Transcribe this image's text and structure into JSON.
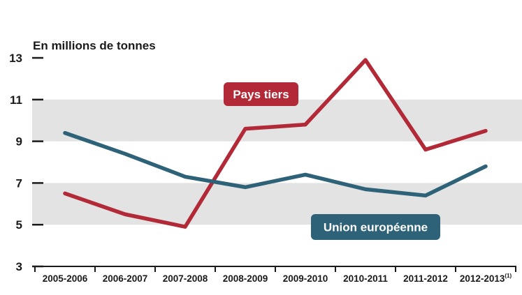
{
  "chart_data": {
    "type": "line",
    "title": "",
    "unit_label": "En millions de tonnes",
    "xlabel": "",
    "ylabel": "",
    "categories": [
      "2005-2006",
      "2006-2007",
      "2007-2008",
      "2008-2009",
      "2009-2010",
      "2010-2011",
      "2011-2012",
      "2012-2013"
    ],
    "last_category_note": "(1)",
    "ylim": [
      3,
      13
    ],
    "yticks": [
      3,
      5,
      7,
      9,
      11,
      13
    ],
    "grid": "alternating horizontal bands",
    "series": [
      {
        "name": "Pays tiers",
        "color": "#b22a37",
        "values": [
          6.5,
          5.5,
          4.9,
          9.6,
          9.8,
          12.9,
          8.6,
          9.5
        ]
      },
      {
        "name": "Union européenne",
        "color": "#2e6278",
        "values": [
          9.4,
          8.4,
          7.3,
          6.8,
          7.4,
          6.7,
          6.4,
          7.8
        ]
      }
    ],
    "colors": {
      "band": "#e3e3e3",
      "axis": "#1a1a1a"
    }
  }
}
